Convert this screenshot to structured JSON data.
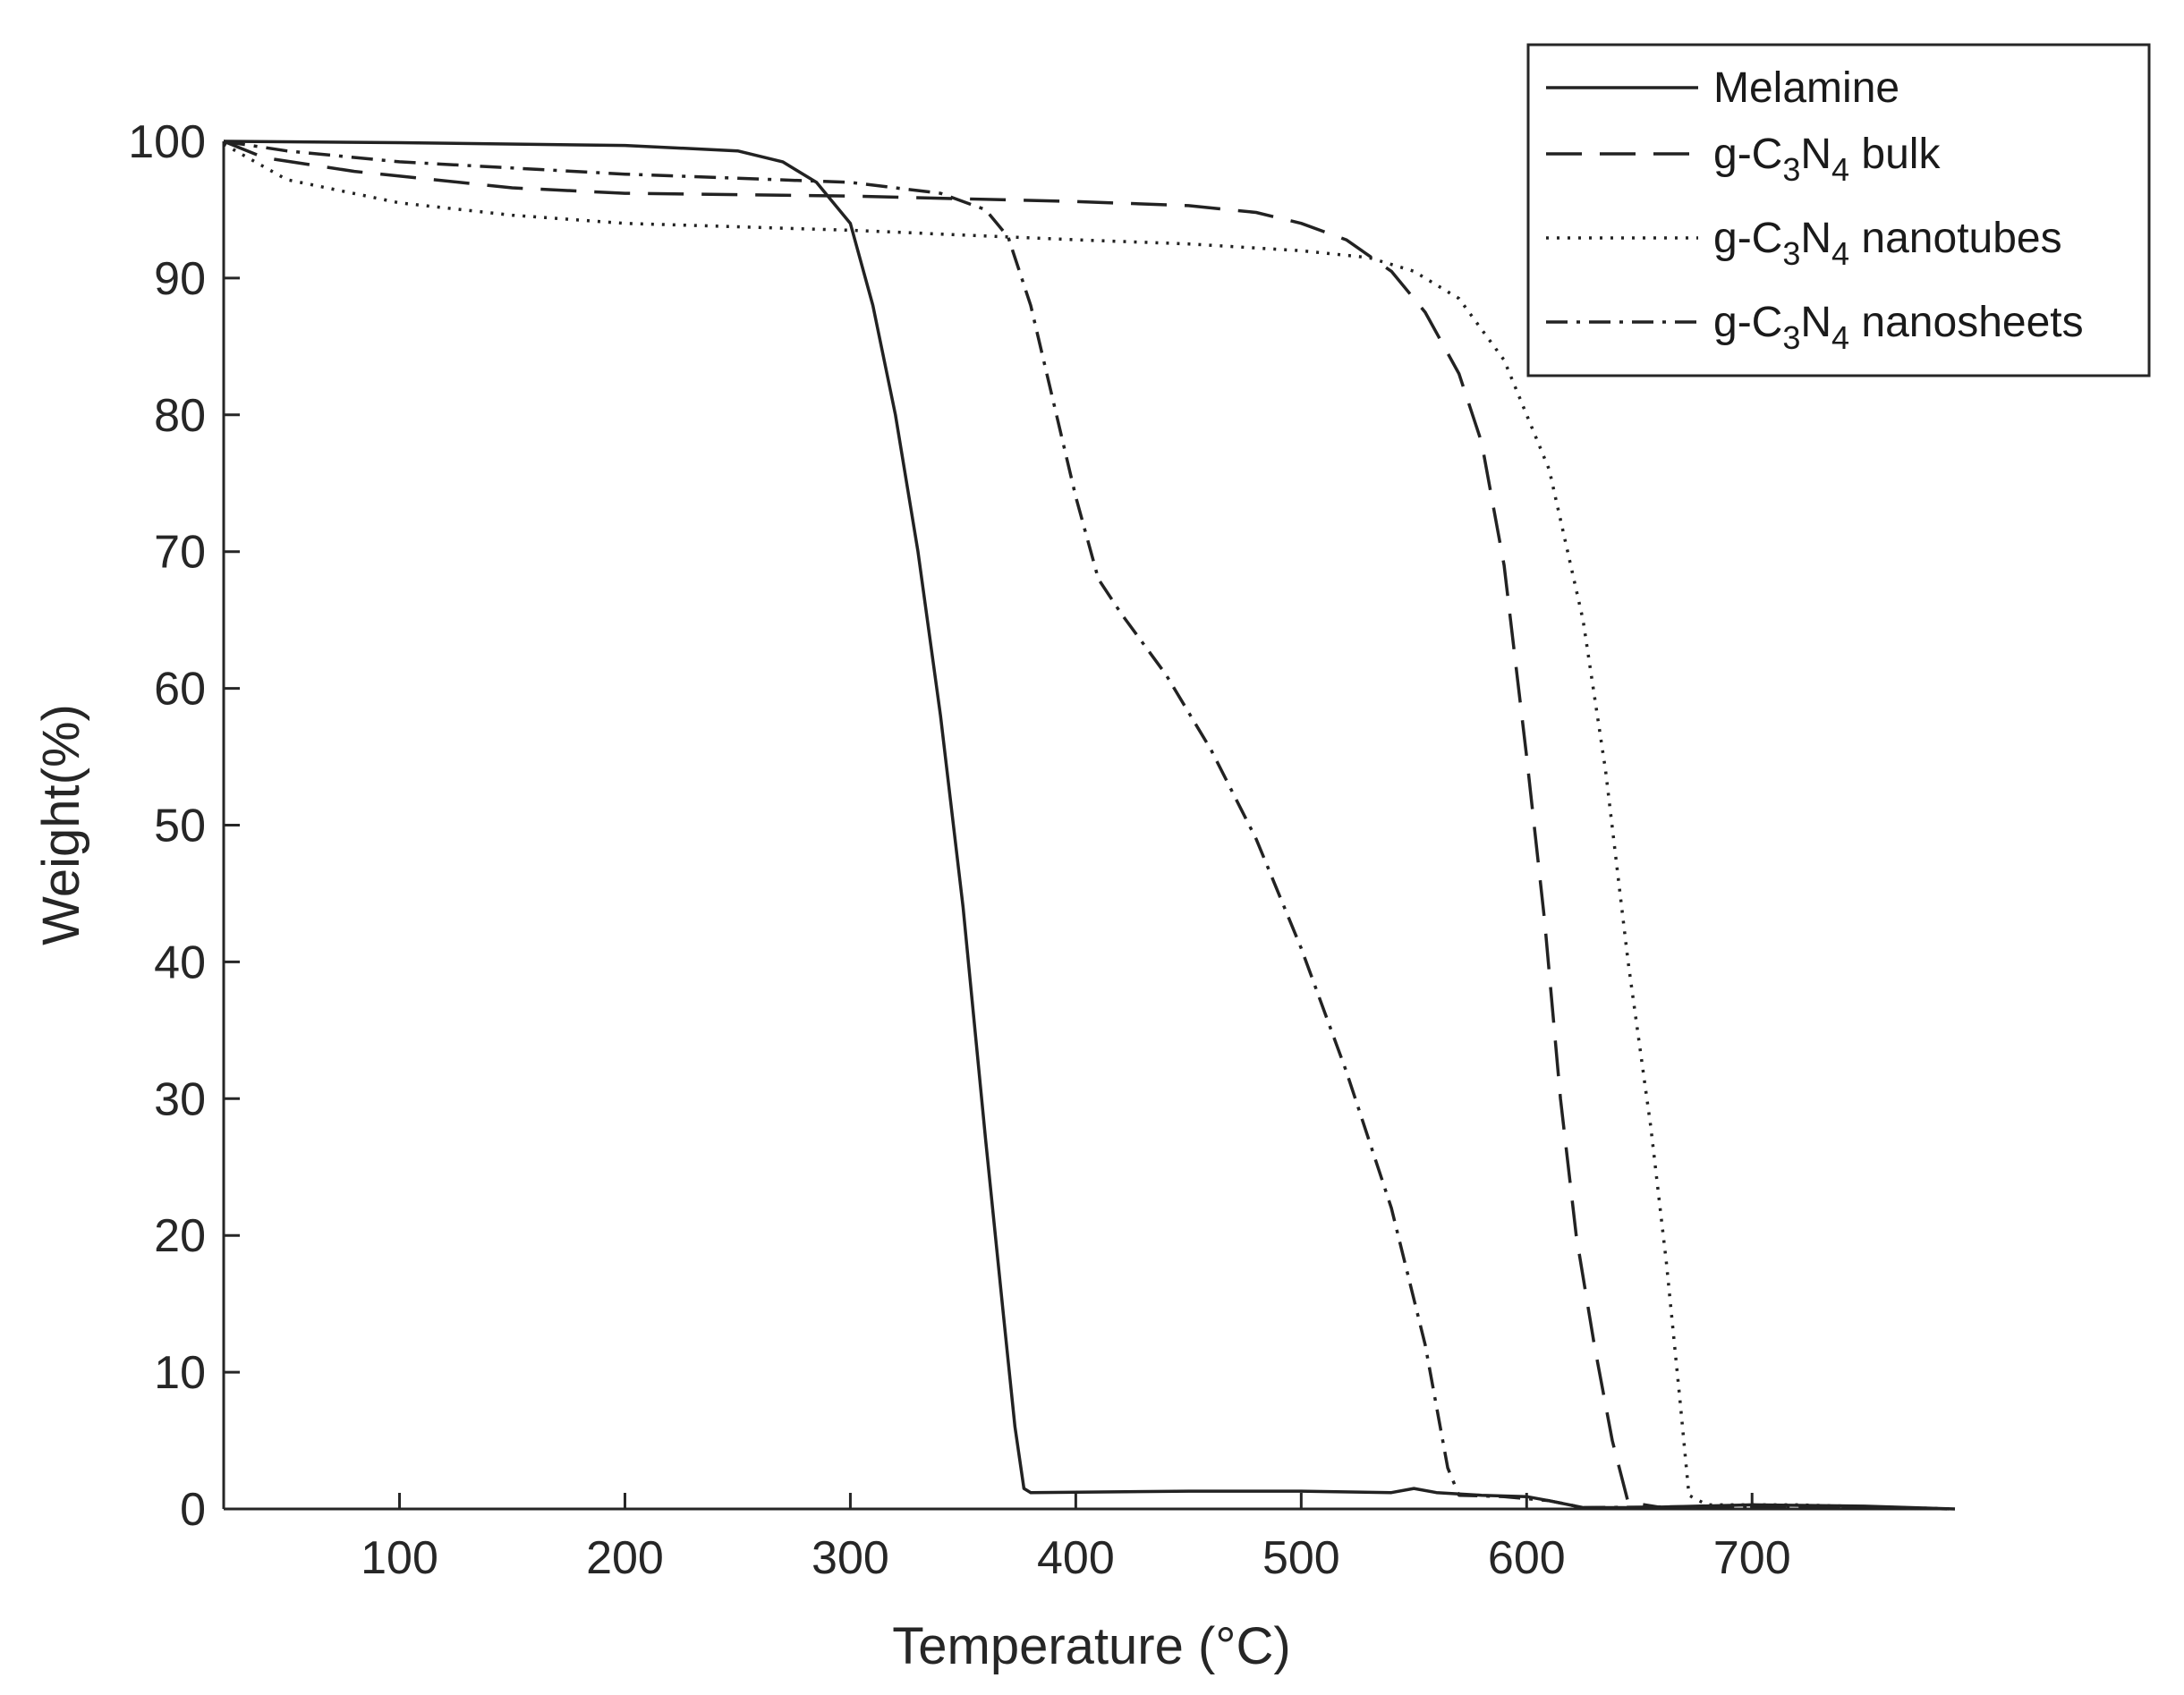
{
  "chart_data": {
    "type": "line",
    "title": "",
    "xlabel": "Temperature (°C)",
    "ylabel": "Weight(%)",
    "xlim": [
      22,
      790
    ],
    "ylim": [
      0,
      100
    ],
    "xticks": [
      100,
      200,
      300,
      400,
      500,
      600,
      700
    ],
    "yticks": [
      0,
      10,
      20,
      30,
      40,
      50,
      60,
      70,
      80,
      90,
      100
    ],
    "grid": false,
    "legend_position": "top-right",
    "series": [
      {
        "name": "Melamine",
        "legend": {
          "base": "Melamine",
          "sub1": "",
          "mid": "",
          "sub2": "",
          "tail": ""
        },
        "dash": "solid",
        "points": [
          [
            22,
            100
          ],
          [
            100,
            99.9
          ],
          [
            200,
            99.7
          ],
          [
            250,
            99.3
          ],
          [
            270,
            98.5
          ],
          [
            285,
            97.0
          ],
          [
            300,
            94.0
          ],
          [
            310,
            88.0
          ],
          [
            320,
            80.0
          ],
          [
            330,
            70.0
          ],
          [
            340,
            58.0
          ],
          [
            350,
            44.0
          ],
          [
            360,
            27.0
          ],
          [
            368,
            14.0
          ],
          [
            373,
            6.0
          ],
          [
            377,
            1.5
          ],
          [
            380,
            1.2
          ],
          [
            450,
            1.3
          ],
          [
            500,
            1.3
          ],
          [
            540,
            1.2
          ],
          [
            550,
            1.5
          ],
          [
            560,
            1.2
          ],
          [
            580,
            1.0
          ],
          [
            600,
            0.9
          ],
          [
            610,
            0.6
          ],
          [
            625,
            0.1
          ],
          [
            650,
            0.1
          ],
          [
            700,
            0.3
          ],
          [
            750,
            0.2
          ],
          [
            790,
            0.0
          ]
        ]
      },
      {
        "name": "g-C3N4 bulk",
        "legend": {
          "base": "g-C",
          "sub1": "3",
          "mid": "N",
          "sub2": "4",
          "tail": " bulk"
        },
        "dash": "40,20",
        "points": [
          [
            22,
            100
          ],
          [
            40,
            98.8
          ],
          [
            80,
            97.8
          ],
          [
            150,
            96.6
          ],
          [
            200,
            96.2
          ],
          [
            300,
            96.0
          ],
          [
            400,
            95.6
          ],
          [
            450,
            95.3
          ],
          [
            480,
            94.8
          ],
          [
            500,
            94.0
          ],
          [
            520,
            92.8
          ],
          [
            540,
            90.5
          ],
          [
            555,
            87.5
          ],
          [
            570,
            83.0
          ],
          [
            580,
            78.0
          ],
          [
            590,
            69.0
          ],
          [
            600,
            55.0
          ],
          [
            608,
            43.0
          ],
          [
            615,
            30.0
          ],
          [
            622,
            20.0
          ],
          [
            630,
            12.0
          ],
          [
            638,
            5.0
          ],
          [
            645,
            0.5
          ],
          [
            660,
            0.1
          ],
          [
            700,
            0.2
          ],
          [
            790,
            0.0
          ]
        ]
      },
      {
        "name": "g-C3N4 nanotubes",
        "legend": {
          "base": "g-C",
          "sub1": "3",
          "mid": "N",
          "sub2": "4",
          "tail": " nanotubes"
        },
        "dash": "3,9",
        "points": [
          [
            22,
            99.8
          ],
          [
            50,
            97.2
          ],
          [
            100,
            95.5
          ],
          [
            150,
            94.6
          ],
          [
            200,
            94.0
          ],
          [
            300,
            93.5
          ],
          [
            400,
            92.8
          ],
          [
            450,
            92.5
          ],
          [
            500,
            92.0
          ],
          [
            530,
            91.5
          ],
          [
            550,
            90.5
          ],
          [
            570,
            88.5
          ],
          [
            590,
            84.0
          ],
          [
            610,
            76.0
          ],
          [
            625,
            65.0
          ],
          [
            635,
            54.0
          ],
          [
            645,
            40.0
          ],
          [
            655,
            28.0
          ],
          [
            662,
            18.0
          ],
          [
            668,
            8.0
          ],
          [
            672,
            1.0
          ],
          [
            680,
            0.3
          ],
          [
            720,
            0.3
          ],
          [
            790,
            0.0
          ]
        ]
      },
      {
        "name": "g-C3N4 nanosheets",
        "legend": {
          "base": "g-C",
          "sub1": "3",
          "mid": "N",
          "sub2": "4",
          "tail": " nanosheets"
        },
        "dash": "24,10,4,10",
        "points": [
          [
            22,
            100
          ],
          [
            50,
            99.3
          ],
          [
            100,
            98.5
          ],
          [
            200,
            97.6
          ],
          [
            300,
            97.0
          ],
          [
            340,
            96.2
          ],
          [
            360,
            95.0
          ],
          [
            370,
            93.0
          ],
          [
            380,
            88.0
          ],
          [
            390,
            81.0
          ],
          [
            400,
            74.0
          ],
          [
            410,
            68.0
          ],
          [
            420,
            65.5
          ],
          [
            440,
            61.0
          ],
          [
            460,
            55.5
          ],
          [
            480,
            49.0
          ],
          [
            500,
            41.0
          ],
          [
            520,
            32.0
          ],
          [
            540,
            22.0
          ],
          [
            555,
            12.0
          ],
          [
            565,
            3.0
          ],
          [
            570,
            1.0
          ],
          [
            590,
            0.9
          ],
          [
            610,
            0.6
          ],
          [
            625,
            0.1
          ],
          [
            700,
            0.2
          ],
          [
            790,
            0.0
          ]
        ]
      }
    ]
  }
}
